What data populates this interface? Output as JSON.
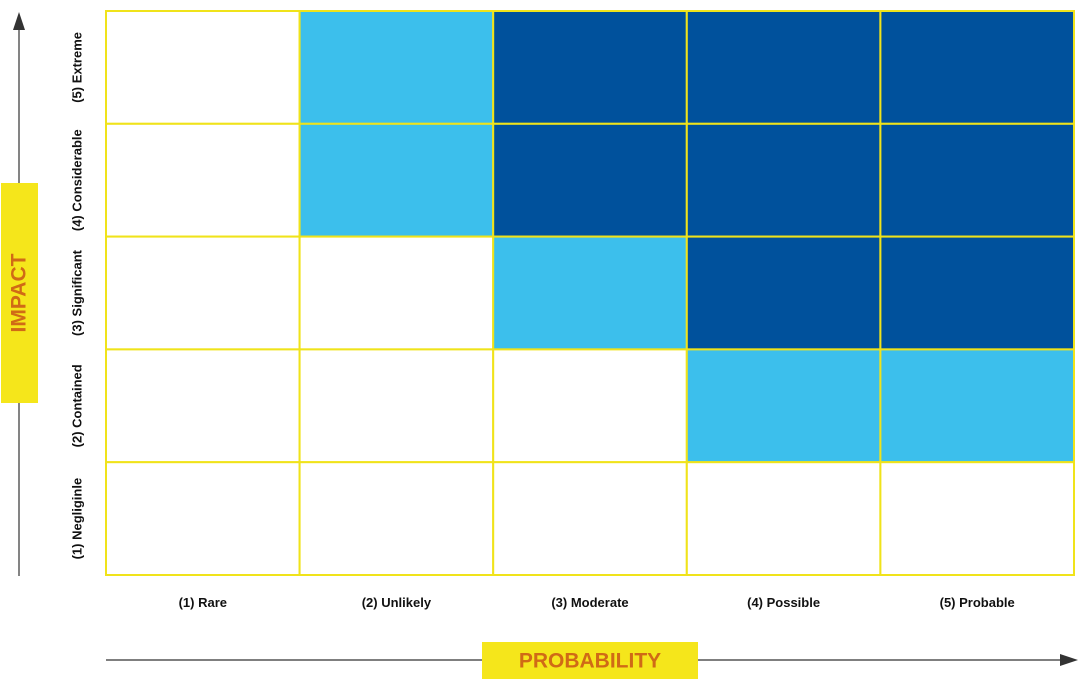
{
  "chart_data": {
    "type": "heatmap",
    "title": "",
    "xlabel": "PROBABILITY",
    "ylabel": "IMPACT",
    "x_categories": [
      "(1) Rare",
      "(2) Unlikely",
      "(3) Moderate",
      "(4) Possible",
      "(5) Probable"
    ],
    "y_categories": [
      "(1) Negliginle",
      "(2) Contained",
      "(3) Significant",
      "(4) Considerable",
      "(5) Extreme"
    ],
    "levels": [
      "low",
      "medium",
      "high"
    ],
    "cells": [
      [
        "low",
        "medium",
        "high",
        "high",
        "high"
      ],
      [
        "low",
        "medium",
        "high",
        "high",
        "high"
      ],
      [
        "low",
        "low",
        "medium",
        "high",
        "high"
      ],
      [
        "low",
        "low",
        "low",
        "medium",
        "medium"
      ],
      [
        "low",
        "low",
        "low",
        "low",
        "low"
      ]
    ],
    "cells_row_order": "top-to-bottom (5) Extreme to (1) Negliginle",
    "level_colors": {
      "low": "#ffffff",
      "medium": "#3cbfec",
      "high": "#00519c"
    },
    "grid_line_color": "#f0e31a",
    "axis_label_bg_color": "#f5e61b",
    "axis_label_text_color": "#d06a16",
    "axis_line_color": "#333333",
    "legend": "none",
    "grid": true
  }
}
